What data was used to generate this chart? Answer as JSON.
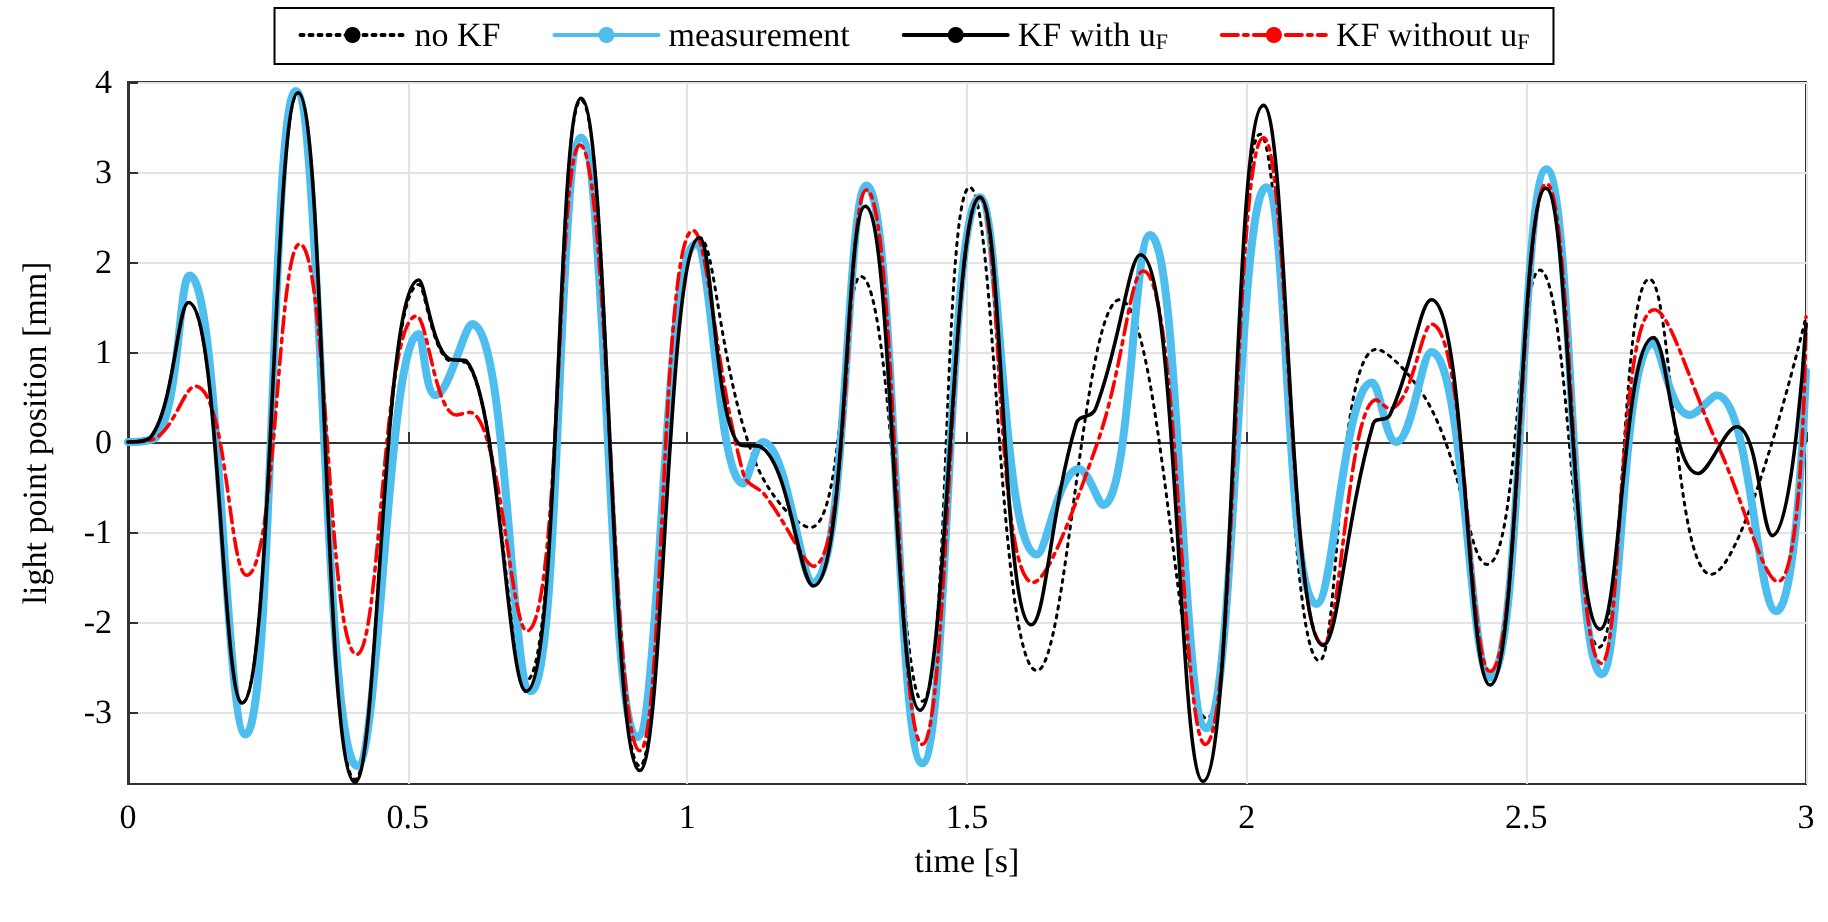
{
  "chart_data": {
    "type": "line",
    "xlabel": "time [s]",
    "ylabel": "light point position [mm]",
    "xlim": [
      0,
      3
    ],
    "xticks": [
      0,
      0.5,
      1,
      1.5,
      2,
      2.5,
      3
    ],
    "ylim": [
      -3.8,
      4
    ],
    "yticks": [
      -3,
      -2,
      -1,
      0,
      1,
      2,
      3,
      4
    ],
    "grid": true,
    "legend": "top",
    "marker": "none",
    "series": [
      {
        "name": "no KF",
        "color": "#000000",
        "line_style": "dotted",
        "x": [
          0,
          0.04,
          0.108,
          0.204,
          0.304,
          0.406,
          0.52,
          0.575,
          0.605,
          0.712,
          0.81,
          0.915,
          1.022,
          1.12,
          1.22,
          1.31,
          1.42,
          1.505,
          1.625,
          1.773,
          1.928,
          2.024,
          2.13,
          2.232,
          2.33,
          2.43,
          2.524,
          2.63,
          2.72,
          2.83,
          3.0
        ],
        "values": [
          0,
          0.05,
          1.55,
          -2.9,
          3.88,
          -3.75,
          1.75,
          0.9,
          0.88,
          -2.65,
          3.8,
          -3.6,
          2.27,
          -0.2,
          -0.95,
          1.84,
          -2.88,
          2.83,
          -2.54,
          1.58,
          -3.07,
          3.42,
          -2.43,
          1.03,
          0.37,
          -1.36,
          1.91,
          -2.28,
          1.81,
          -1.47,
          1.39
        ]
      },
      {
        "name": "measurement",
        "color": "#4dbeee",
        "line_style": "solid",
        "x": [
          0,
          0.05,
          0.11,
          0.21,
          0.3,
          0.41,
          0.52,
          0.55,
          0.615,
          0.72,
          0.81,
          0.91,
          1.015,
          1.1,
          1.135,
          1.225,
          1.32,
          1.42,
          1.523,
          1.625,
          1.7,
          1.743,
          1.827,
          1.928,
          2.035,
          2.125,
          2.224,
          2.267,
          2.33,
          2.435,
          2.536,
          2.635,
          2.727,
          2.792,
          2.84,
          2.947,
          3.0
        ],
        "values": [
          0,
          0.05,
          1.85,
          -3.25,
          3.9,
          -3.6,
          1.2,
          0.52,
          1.31,
          -2.77,
          3.38,
          -3.28,
          2.2,
          -0.46,
          0,
          -1.56,
          2.85,
          -3.57,
          2.72,
          -1.25,
          -0.3,
          -0.7,
          2.3,
          -3.18,
          2.83,
          -1.8,
          0.66,
          0,
          1,
          -2.62,
          3.03,
          -2.58,
          1.1,
          0.3,
          0.52,
          -1.88,
          0.78
        ]
      },
      {
        "name": "KF with u$_{F}$",
        "color": "#000000",
        "line_style": "solid",
        "x": [
          0,
          0.04,
          0.108,
          0.204,
          0.304,
          0.406,
          0.52,
          0.575,
          0.605,
          0.712,
          0.81,
          0.915,
          1.022,
          1.094,
          1.13,
          1.225,
          1.318,
          1.416,
          1.523,
          1.615,
          1.695,
          1.73,
          1.81,
          1.922,
          2.03,
          2.137,
          2.226,
          2.256,
          2.33,
          2.435,
          2.535,
          2.632,
          2.727,
          2.807,
          2.876,
          2.94,
          3.0
        ],
        "values": [
          0,
          0.05,
          1.55,
          -2.9,
          3.88,
          -3.78,
          1.8,
          0.92,
          0.9,
          -2.77,
          3.82,
          -3.65,
          2.27,
          -0.03,
          -0.05,
          -1.6,
          2.62,
          -2.98,
          2.72,
          -2.03,
          0.2,
          0.37,
          2.08,
          -3.77,
          3.74,
          -2.26,
          0.2,
          0.3,
          1.58,
          -2.7,
          2.82,
          -2.08,
          1.16,
          -0.35,
          0.17,
          -1.04,
          1.31
        ]
      },
      {
        "name": "KF without u$_{F}$",
        "color": "#ff0000",
        "line_style": "dashdot",
        "x": [
          0,
          0.04,
          0.12,
          0.212,
          0.307,
          0.409,
          0.516,
          0.587,
          0.611,
          0.713,
          0.808,
          0.915,
          1.01,
          1.1,
          1.14,
          1.225,
          1.32,
          1.42,
          1.523,
          1.618,
          1.732,
          1.815,
          1.926,
          2.03,
          2.137,
          2.232,
          2.256,
          2.33,
          2.435,
          2.536,
          2.634,
          2.729,
          2.84,
          2.95,
          3.0
        ],
        "values": [
          0,
          0.02,
          0.62,
          -1.48,
          2.2,
          -2.36,
          1.4,
          0.3,
          0.33,
          -2.1,
          3.3,
          -3.43,
          2.35,
          -0.35,
          -0.6,
          -1.38,
          2.8,
          -3.36,
          2.72,
          -1.56,
          -0.03,
          1.9,
          -3.36,
          3.38,
          -2.25,
          0.47,
          0.37,
          1.31,
          -2.55,
          2.87,
          -2.46,
          1.47,
          0,
          -1.55,
          1.39
        ]
      }
    ]
  }
}
